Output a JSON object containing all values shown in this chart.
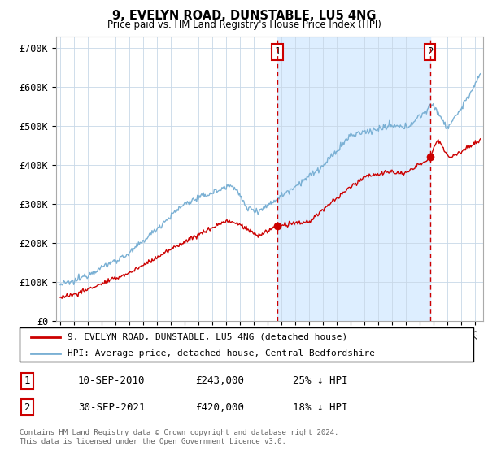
{
  "title": "9, EVELYN ROAD, DUNSTABLE, LU5 4NG",
  "subtitle": "Price paid vs. HM Land Registry's House Price Index (HPI)",
  "ylabel_ticks": [
    "£0",
    "£100K",
    "£200K",
    "£300K",
    "£400K",
    "£500K",
    "£600K",
    "£700K"
  ],
  "ytick_values": [
    0,
    100000,
    200000,
    300000,
    400000,
    500000,
    600000,
    700000
  ],
  "ylim": [
    0,
    730000
  ],
  "xlim_start": 1994.7,
  "xlim_end": 2025.6,
  "hpi_color": "#7ab0d4",
  "hpi_fill_color": "#ddeeff",
  "price_color": "#cc0000",
  "sale1_date": 2010.7,
  "sale1_price": 243000,
  "sale2_date": 2021.75,
  "sale2_price": 420000,
  "legend_label_price": "9, EVELYN ROAD, DUNSTABLE, LU5 4NG (detached house)",
  "legend_label_hpi": "HPI: Average price, detached house, Central Bedfordshire",
  "table_row1": [
    "1",
    "10-SEP-2010",
    "£243,000",
    "25% ↓ HPI"
  ],
  "table_row2": [
    "2",
    "30-SEP-2021",
    "£420,000",
    "18% ↓ HPI"
  ],
  "footnote": "Contains HM Land Registry data © Crown copyright and database right 2024.\nThis data is licensed under the Open Government Licence v3.0.",
  "background_color": "#ffffff",
  "grid_color": "#c8d8e8"
}
